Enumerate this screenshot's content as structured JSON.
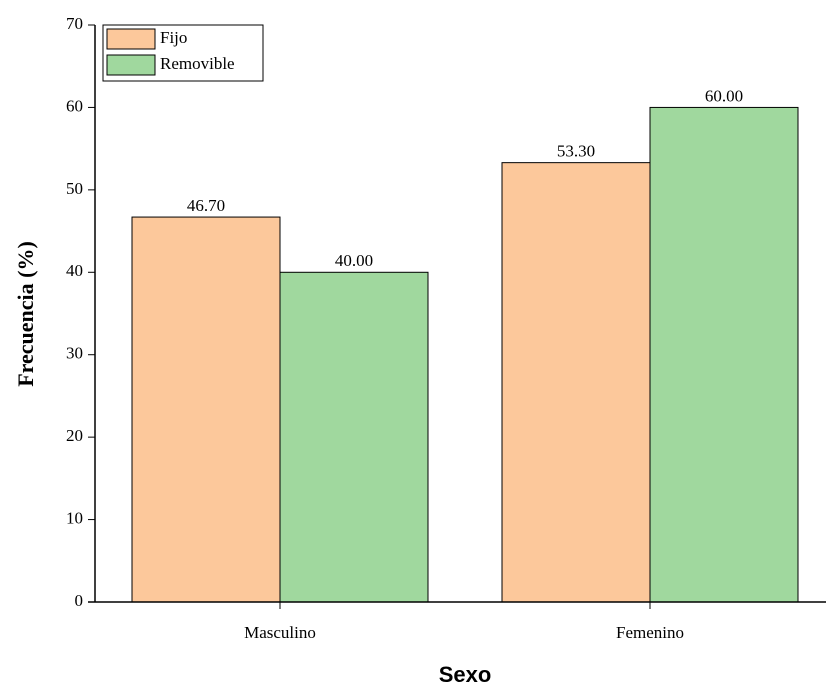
{
  "chart_data": {
    "type": "bar",
    "xlabel": "Sexo",
    "ylabel": "Frecuencia (%)",
    "categories": [
      "Masculino",
      "Femenino"
    ],
    "series": [
      {
        "name": "Fijo",
        "color": "#fcc89b",
        "values": [
          46.7,
          53.3
        ],
        "value_labels": [
          "46.70",
          "53.30"
        ]
      },
      {
        "name": "Removible",
        "color": "#a0d89e",
        "values": [
          40,
          60
        ],
        "value_labels": [
          "40.00",
          "60.00"
        ]
      }
    ],
    "ylim": [
      0,
      70
    ],
    "yticks": [
      0,
      10,
      20,
      30,
      40,
      50,
      60,
      70
    ],
    "legend": "upper left"
  }
}
